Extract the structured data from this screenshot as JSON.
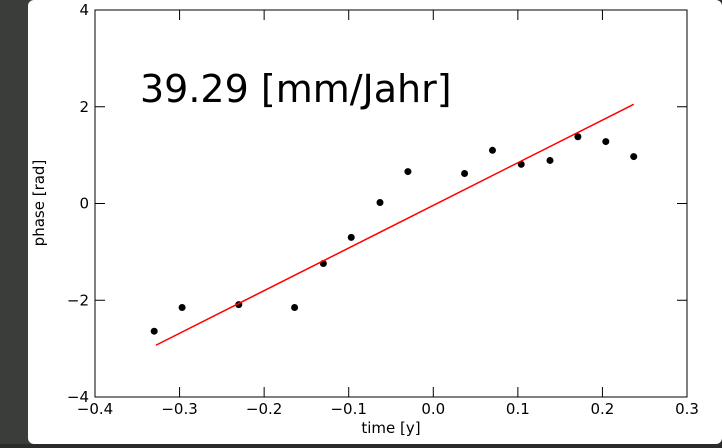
{
  "chart_data": {
    "type": "scatter",
    "annotation": "39.29 [mm/Jahr]",
    "x_label": "time [y]",
    "y_label": "phase [rad]",
    "series": [
      {
        "type": "scatter",
        "color": "#000000",
        "x": [
          -0.33,
          -0.297,
          -0.23,
          -0.164,
          -0.13,
          -0.097,
          -0.063,
          -0.03,
          0.037,
          0.07,
          0.104,
          0.138,
          0.171,
          0.204,
          0.237
        ],
        "values": [
          -2.64,
          -2.15,
          -2.09,
          -2.15,
          -1.24,
          -0.7,
          0.02,
          0.66,
          0.62,
          1.1,
          0.81,
          0.89,
          1.38,
          1.28,
          0.97
        ]
      },
      {
        "type": "line",
        "color": "#ff0000",
        "x": [
          -0.328,
          0.237
        ],
        "values": [
          -2.93,
          2.05
        ]
      }
    ],
    "xlim": [
      -0.4,
      0.3
    ],
    "ylim": [
      -4,
      4
    ],
    "xticks": [
      {
        "value": -0.4,
        "label": "−0.4"
      },
      {
        "value": -0.3,
        "label": "−0.3"
      },
      {
        "value": -0.2,
        "label": "−0.2"
      },
      {
        "value": -0.1,
        "label": "−0.1"
      },
      {
        "value": 0,
        "label": "0.0"
      },
      0.1,
      0.2,
      0.3
    ],
    "yticks": [
      {
        "value": -4,
        "label": "−4"
      },
      {
        "value": -2,
        "label": "−2"
      },
      0,
      2,
      4
    ]
  }
}
